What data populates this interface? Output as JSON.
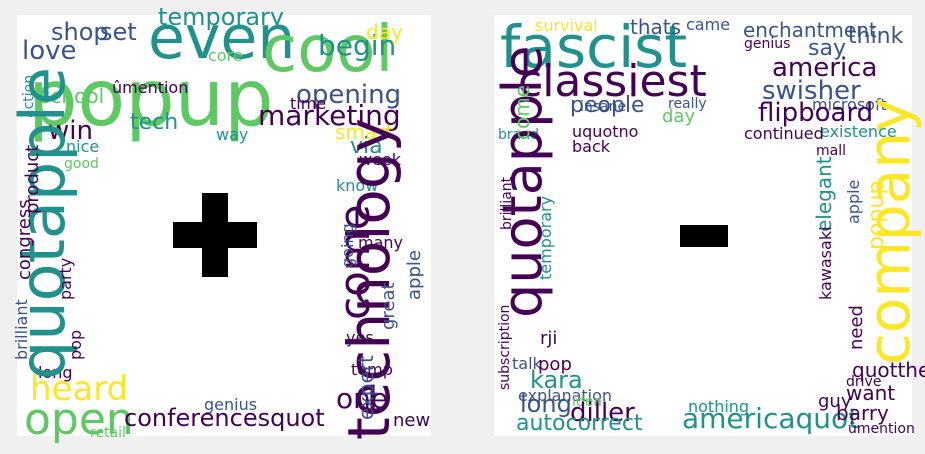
{
  "colors": {
    "background": "#f0f0f0",
    "panel": "#ffffff",
    "symbol": "#000000",
    "viridis": [
      "#440154",
      "#3b528b",
      "#21918c",
      "#5ec962",
      "#fde725"
    ]
  },
  "positive_cloud": {
    "symbol": "plus",
    "words": {
      "popup": "popup",
      "even": "even",
      "cool": "cool",
      "quotapple": "quotapple",
      "technology": "technology",
      "open": "open",
      "heard": "heard",
      "conferencesquot": "conferencesquot",
      "marketing": "marketing",
      "temporary": "temporary",
      "begin": "begin",
      "come": "come",
      "love": "love",
      "shop": "shop",
      "set": "set",
      "school": "school",
      "win": "win",
      "tech": "tech",
      "opening": "opening",
      "one": "one",
      "expert": "expert",
      "great": "great",
      "apple": "apple",
      "product": "product",
      "congress": "congress",
      "brilliant": "brilliant",
      "party": "party",
      "pop": "pop",
      "day": "day",
      "via": "via",
      "smart": "smart",
      "week": "week",
      "know": "know",
      "many": "many",
      "going": "going",
      "yes": "yes",
      "temp": "temp",
      "new": "new",
      "genius": "genius",
      "retail": "retail",
      "core": "core",
      "time": "time",
      "nice": "nice",
      "good": "good",
      "long": "long",
      "way": "way",
      "action": "action",
      "umention": "ûmention",
      "heardquot": "heardquot"
    }
  },
  "negative_cloud": {
    "symbol": "minus",
    "words": {
      "fascist": "fascist",
      "classiest": "classiest",
      "company": "company",
      "quotapple": "quotapple",
      "people": "people",
      "swisher": "swisher",
      "america": "america",
      "flipboard": "flipboard",
      "kara": "kara",
      "long": "long",
      "americaquot": "americaquot",
      "autocorrect": "autocorrect",
      "diller": "diller",
      "think": "think",
      "enchantment": "enchantment",
      "say": "say",
      "popup": "popup",
      "elegant": "elegant",
      "want": "want",
      "barry": "barry",
      "guy": "guy",
      "quotthe": "quotthe",
      "thats": "thats",
      "came": "came",
      "survival": "survival",
      "day": "day",
      "come": "come",
      "back": "back",
      "uquotno": "uquotno",
      "insane": "insane",
      "rji": "rji",
      "pop": "pop",
      "talk": "talk",
      "explanation": "explanation",
      "idea": "idea",
      "nothing": "nothing",
      "need": "need",
      "continued": "continued",
      "existence": "existence",
      "temporary": "temporary",
      "brilliant": "brilliant",
      "subscription": "subscription",
      "kawasaki": "kawasaki",
      "mall": "mall",
      "microsoft": "microsoft",
      "brand": "brand",
      "apple": "apple",
      "really": "really",
      "genius": "genius",
      "umention": "ûmention",
      "drive": "drive"
    }
  }
}
